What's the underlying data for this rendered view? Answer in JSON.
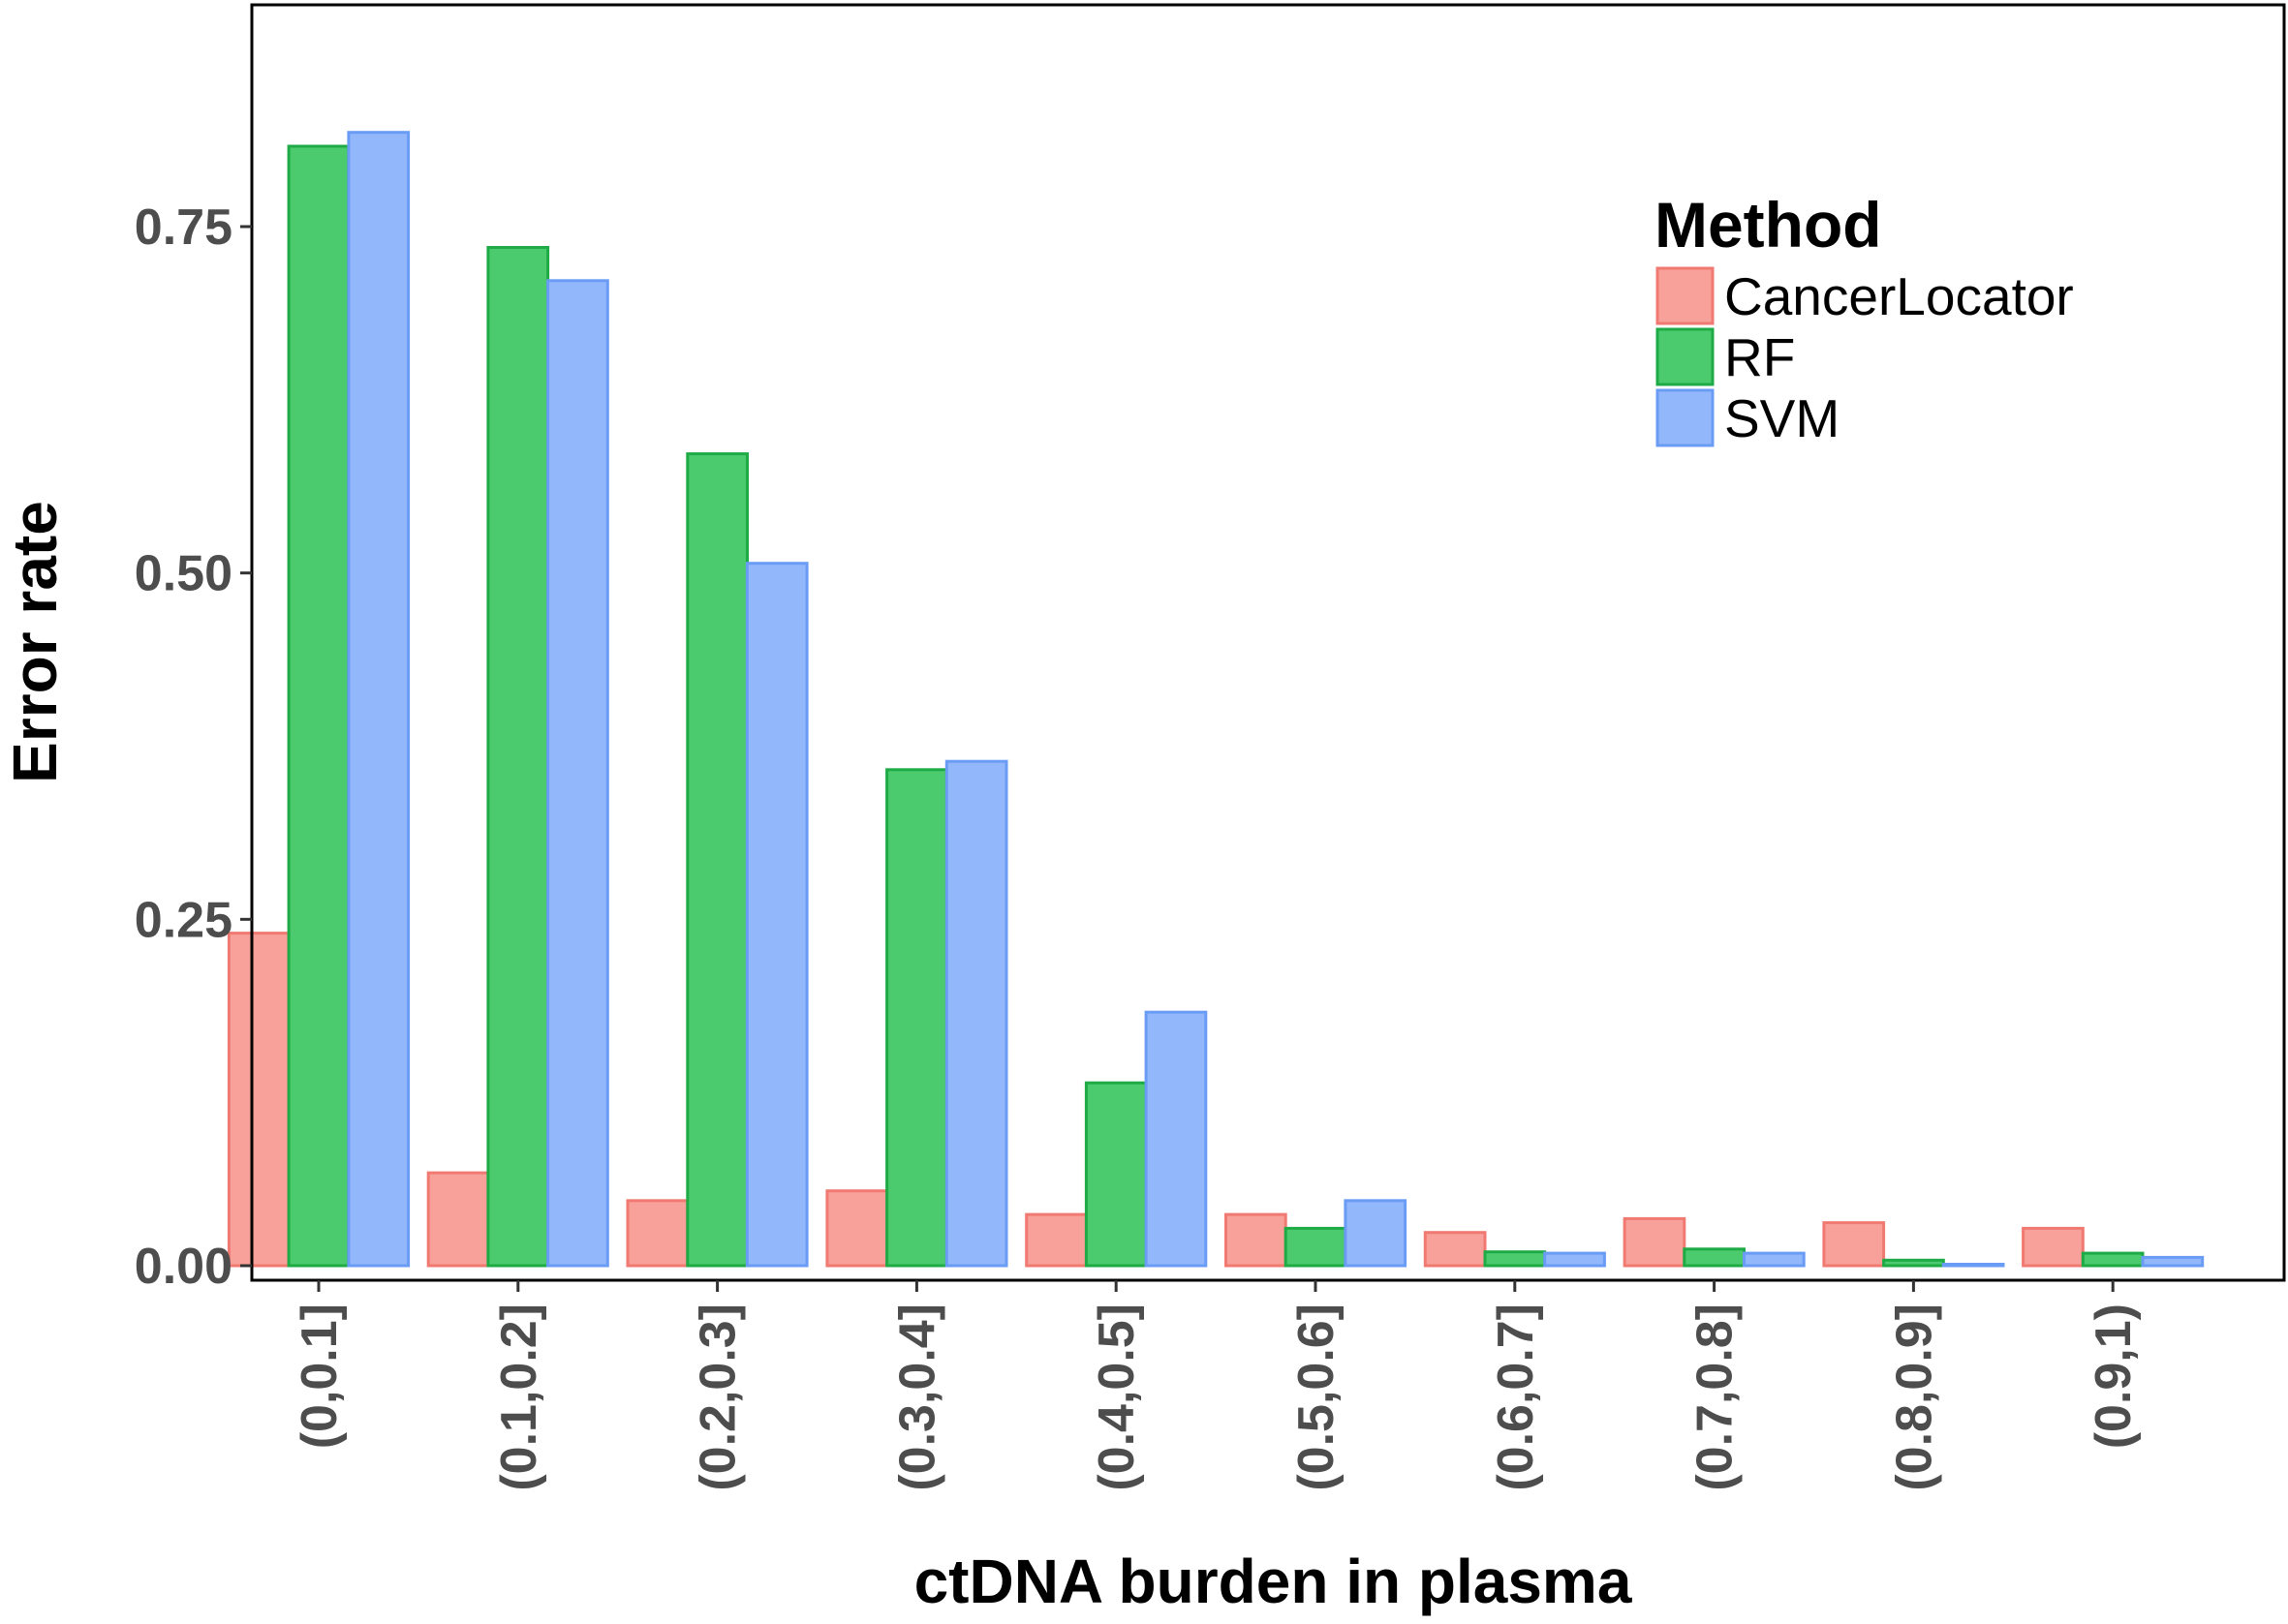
{
  "chart_data": {
    "type": "bar",
    "title": "",
    "xlabel": "ctDNA burden in plasma",
    "ylabel": "Error rate",
    "ylim": [
      -0.012,
      0.9
    ],
    "yticks": [
      0.0,
      0.25,
      0.5,
      0.75
    ],
    "ytick_labels": [
      "0.00",
      "0.25",
      "0.50",
      "0.75"
    ],
    "grid": false,
    "legend": {
      "title": "Method",
      "position": "top-right"
    },
    "categories": [
      "(0,0.1]",
      "(0.1,0.2]",
      "(0.2,0.3]",
      "(0.3,0.4]",
      "(0.4,0.5]",
      "(0.5,0.6]",
      "(0.6,0.7]",
      "(0.7,0.8]",
      "(0.8,0.9]",
      "(0.9,1)"
    ],
    "series": [
      {
        "name": "CancerLocator",
        "fill": "#f8a09a",
        "stroke": "#f07a72",
        "values": [
          0.24,
          0.067,
          0.047,
          0.054,
          0.037,
          0.037,
          0.024,
          0.034,
          0.031,
          0.027
        ]
      },
      {
        "name": "RF",
        "fill": "#4ccb6e",
        "stroke": "#1eab46",
        "values": [
          0.808,
          0.735,
          0.586,
          0.358,
          0.132,
          0.027,
          0.01,
          0.012,
          0.004,
          0.009
        ]
      },
      {
        "name": "SVM",
        "fill": "#93b7fb",
        "stroke": "#6a9cf5",
        "values": [
          0.818,
          0.711,
          0.507,
          0.364,
          0.183,
          0.047,
          0.009,
          0.009,
          0.001,
          0.006
        ]
      }
    ]
  }
}
